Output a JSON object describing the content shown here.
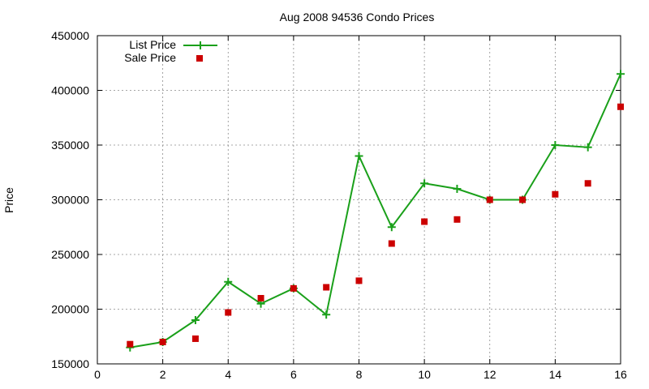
{
  "chart_data": {
    "type": "line",
    "title": "Aug 2008 94536 Condo Prices",
    "xlabel": "",
    "ylabel": "Price",
    "xlim": [
      0,
      16
    ],
    "ylim": [
      150000,
      450000
    ],
    "xticks": [
      0,
      2,
      4,
      6,
      8,
      10,
      12,
      14,
      16
    ],
    "yticks": [
      150000,
      200000,
      250000,
      300000,
      350000,
      400000,
      450000
    ],
    "grid": true,
    "legend_position": "top-left",
    "series": [
      {
        "name": "List Price",
        "style": "line-with-plus-markers",
        "color": "#1aa01a",
        "x": [
          1,
          2,
          3,
          4,
          5,
          6,
          7,
          8,
          9,
          10,
          11,
          12,
          13,
          14,
          15,
          16
        ],
        "y": [
          165000,
          170000,
          190000,
          225000,
          205000,
          219000,
          195000,
          340000,
          275000,
          315000,
          310000,
          300000,
          300000,
          350000,
          348000,
          415000
        ]
      },
      {
        "name": "Sale Price",
        "style": "square-markers",
        "color": "#cc0000",
        "x": [
          1,
          2,
          3,
          4,
          5,
          6,
          7,
          8,
          9,
          10,
          11,
          12,
          13,
          14,
          15,
          16
        ],
        "y": [
          168000,
          170000,
          173000,
          197000,
          210000,
          219000,
          220000,
          226000,
          260000,
          280000,
          282000,
          300000,
          300000,
          305000,
          315000,
          385000
        ]
      }
    ]
  }
}
